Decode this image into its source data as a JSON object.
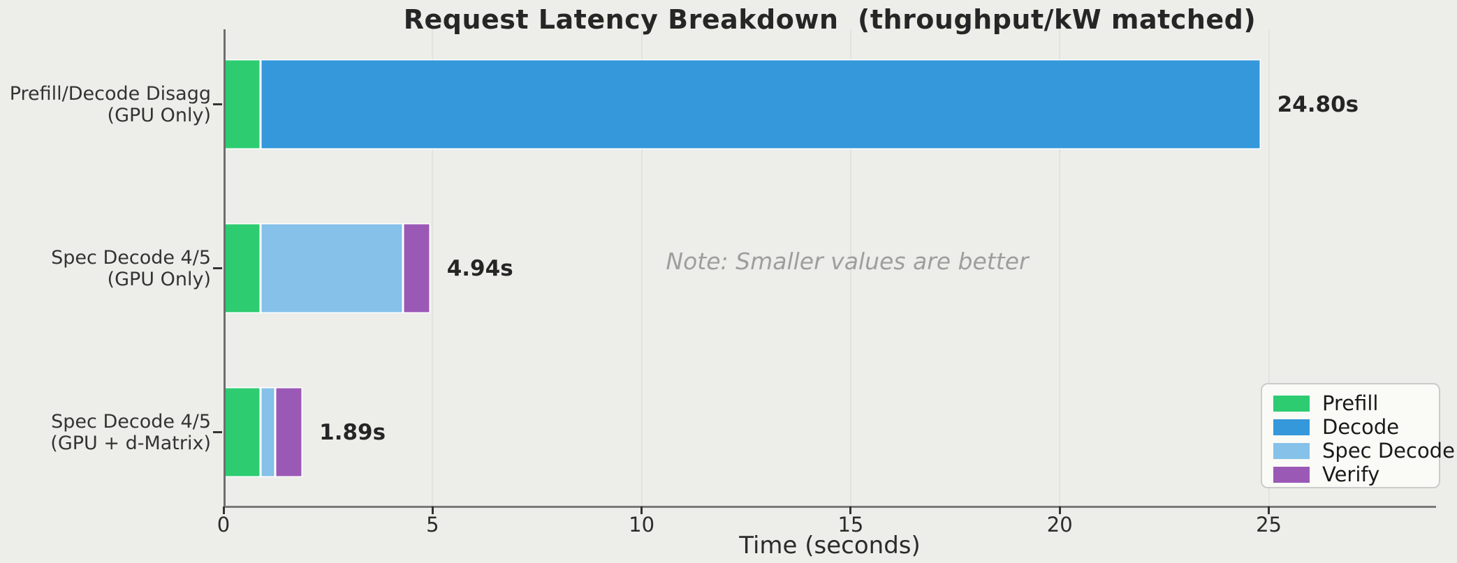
{
  "title": "Request Latency Breakdown  (throughput/kW matched)",
  "background_color": "#EDEEE9",
  "chart_data": {
    "type": "bar",
    "orientation": "horizontal",
    "stacked": true,
    "title": "Request Latency Breakdown  (throughput/kW matched)",
    "xlabel": "Time (seconds)",
    "annotation": "Note: Smaller values are better",
    "xlim": [
      0,
      29
    ],
    "xticks": [
      0,
      5,
      10,
      15,
      20,
      25
    ],
    "grid": true,
    "legend_position": "lower right",
    "categories": [
      [
        "Prefill/Decode Disagg",
        "(GPU Only)"
      ],
      [
        "Spec Decode 4/5",
        "(GPU Only)"
      ],
      [
        "Spec Decode 4/5",
        "(GPU + d-Matrix)"
      ]
    ],
    "series": [
      {
        "name": "Prefill",
        "color": "#2ECC71",
        "values": [
          0.88,
          0.88,
          0.88
        ]
      },
      {
        "name": "Decode",
        "color": "#3498DB",
        "values": [
          23.92,
          0,
          0
        ]
      },
      {
        "name": "Spec Decode",
        "color": "#85C1E9",
        "values": [
          0,
          3.42,
          0.36
        ]
      },
      {
        "name": "Verify",
        "color": "#9B59B6",
        "values": [
          0,
          0.64,
          0.65
        ]
      }
    ],
    "totals": [
      "24.80s",
      "4.94s",
      "1.89s"
    ],
    "totals_values": [
      24.8,
      4.94,
      1.89
    ]
  }
}
